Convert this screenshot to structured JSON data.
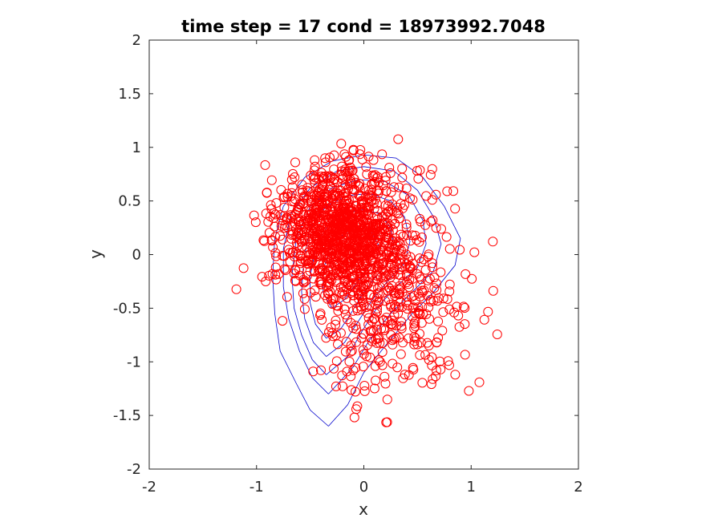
{
  "chart_data": {
    "type": "scatter",
    "title": "time step = 17 cond = 18973992.7048",
    "xlabel": "x",
    "ylabel": "y",
    "xlim": [
      -2,
      2
    ],
    "ylim": [
      -2,
      2
    ],
    "x_ticks": [
      -2,
      -1,
      0,
      1,
      2
    ],
    "y_ticks": [
      -2,
      -1.5,
      -1,
      -0.5,
      0,
      0.5,
      1,
      1.5,
      2
    ],
    "grid": false,
    "colors": {
      "markers": "#ff0000",
      "contours": "#0000cc",
      "axes": "#262626"
    },
    "marker": "open-circle",
    "sample_count": 1500,
    "contours": [
      {
        "points": [
          [
            -0.33,
            -1.6
          ],
          [
            -0.5,
            -1.45
          ],
          [
            -0.63,
            -1.2
          ],
          [
            -0.78,
            -0.9
          ],
          [
            -0.83,
            -0.55
          ],
          [
            -0.85,
            -0.2
          ],
          [
            -0.83,
            0.15
          ],
          [
            -0.75,
            0.45
          ],
          [
            -0.55,
            0.72
          ],
          [
            -0.3,
            0.87
          ],
          [
            0.0,
            0.93
          ],
          [
            0.3,
            0.9
          ],
          [
            0.55,
            0.72
          ],
          [
            0.75,
            0.45
          ],
          [
            0.9,
            0.15
          ],
          [
            0.85,
            -0.1
          ],
          [
            0.65,
            -0.35
          ],
          [
            0.45,
            -0.55
          ],
          [
            0.2,
            -0.85
          ],
          [
            0.0,
            -1.1
          ],
          [
            -0.15,
            -1.4
          ],
          [
            -0.33,
            -1.6
          ]
        ]
      },
      {
        "points": [
          [
            -0.33,
            -1.3
          ],
          [
            -0.48,
            -1.15
          ],
          [
            -0.6,
            -0.9
          ],
          [
            -0.7,
            -0.6
          ],
          [
            -0.75,
            -0.3
          ],
          [
            -0.75,
            0.05
          ],
          [
            -0.68,
            0.38
          ],
          [
            -0.5,
            0.62
          ],
          [
            -0.25,
            0.78
          ],
          [
            0.0,
            0.82
          ],
          [
            0.28,
            0.78
          ],
          [
            0.5,
            0.6
          ],
          [
            0.65,
            0.35
          ],
          [
            0.72,
            0.1
          ],
          [
            0.65,
            -0.15
          ],
          [
            0.45,
            -0.35
          ],
          [
            0.25,
            -0.55
          ],
          [
            0.05,
            -0.8
          ],
          [
            -0.1,
            -1.05
          ],
          [
            -0.33,
            -1.3
          ]
        ]
      },
      {
        "points": [
          [
            -0.35,
            -1.12
          ],
          [
            -0.48,
            -0.98
          ],
          [
            -0.58,
            -0.75
          ],
          [
            -0.65,
            -0.5
          ],
          [
            -0.67,
            -0.2
          ],
          [
            -0.63,
            0.15
          ],
          [
            -0.5,
            0.45
          ],
          [
            -0.3,
            0.62
          ],
          [
            -0.05,
            0.7
          ],
          [
            0.2,
            0.68
          ],
          [
            0.42,
            0.55
          ],
          [
            0.55,
            0.32
          ],
          [
            0.58,
            0.1
          ],
          [
            0.5,
            -0.12
          ],
          [
            0.3,
            -0.3
          ],
          [
            0.12,
            -0.5
          ],
          [
            -0.02,
            -0.72
          ],
          [
            -0.15,
            -0.95
          ],
          [
            -0.35,
            -1.12
          ]
        ]
      },
      {
        "points": [
          [
            -0.35,
            -0.95
          ],
          [
            -0.47,
            -0.82
          ],
          [
            -0.55,
            -0.6
          ],
          [
            -0.58,
            -0.35
          ],
          [
            -0.56,
            -0.05
          ],
          [
            -0.5,
            0.25
          ],
          [
            -0.35,
            0.45
          ],
          [
            -0.15,
            0.55
          ],
          [
            0.05,
            0.57
          ],
          [
            0.25,
            0.5
          ],
          [
            0.38,
            0.35
          ],
          [
            0.43,
            0.12
          ],
          [
            0.38,
            -0.08
          ],
          [
            0.22,
            -0.25
          ],
          [
            0.08,
            -0.42
          ],
          [
            -0.05,
            -0.62
          ],
          [
            -0.18,
            -0.82
          ],
          [
            -0.35,
            -0.95
          ]
        ]
      },
      {
        "points": [
          [
            -0.35,
            -0.78
          ],
          [
            -0.45,
            -0.65
          ],
          [
            -0.5,
            -0.45
          ],
          [
            -0.5,
            -0.2
          ],
          [
            -0.45,
            0.05
          ],
          [
            -0.35,
            0.25
          ],
          [
            -0.2,
            0.38
          ],
          [
            0.0,
            0.42
          ],
          [
            0.15,
            0.38
          ],
          [
            0.25,
            0.25
          ],
          [
            0.28,
            0.08
          ],
          [
            0.22,
            -0.08
          ],
          [
            0.1,
            -0.22
          ],
          [
            -0.02,
            -0.38
          ],
          [
            -0.12,
            -0.55
          ],
          [
            -0.22,
            -0.7
          ],
          [
            -0.35,
            -0.78
          ]
        ]
      },
      {
        "points": [
          [
            -0.3,
            -0.5
          ],
          [
            -0.38,
            -0.35
          ],
          [
            -0.38,
            -0.15
          ],
          [
            -0.32,
            0.05
          ],
          [
            -0.2,
            0.18
          ],
          [
            -0.05,
            0.24
          ],
          [
            0.08,
            0.2
          ],
          [
            0.14,
            0.08
          ],
          [
            0.12,
            -0.05
          ],
          [
            0.02,
            -0.15
          ],
          [
            -0.08,
            -0.28
          ],
          [
            -0.18,
            -0.42
          ],
          [
            -0.3,
            -0.5
          ]
        ]
      }
    ]
  }
}
